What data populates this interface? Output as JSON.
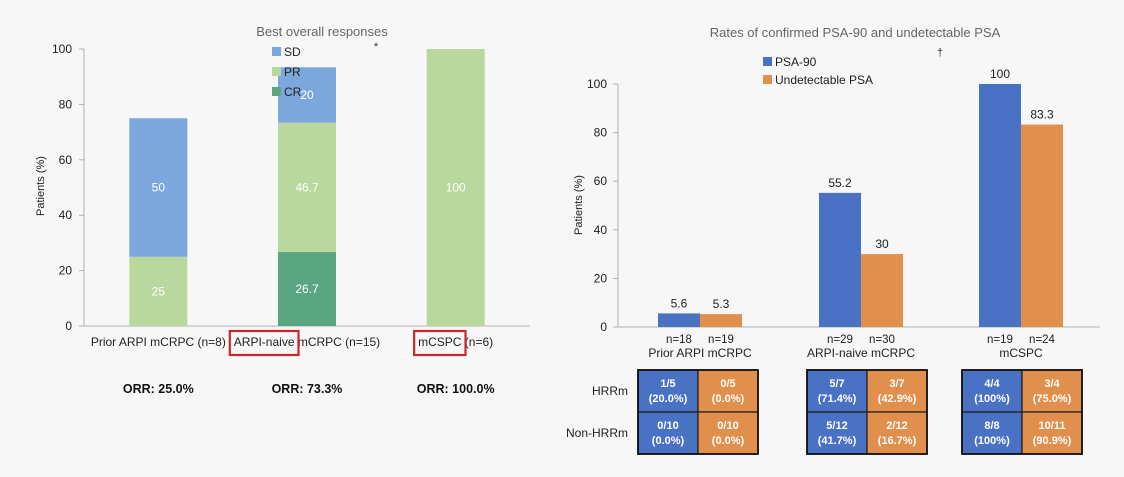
{
  "chart_data": [
    {
      "type": "bar",
      "stacked": true,
      "title": "Best overall responses",
      "ylabel": "Patients (%)",
      "xlabel": "",
      "ylim": [
        0,
        100
      ],
      "yticks": [
        0,
        20,
        40,
        60,
        80,
        100
      ],
      "categories": [
        "Prior ARPI mCRPC (n=8)",
        "ARPI-naive mCRPC (n=15)",
        "mCSPC (n=6)"
      ],
      "highlighted_words": [
        "ARPI-naive",
        "mCSPC"
      ],
      "series": [
        {
          "name": "CR",
          "color": "#5aa683",
          "values": [
            0,
            26.7,
            0
          ],
          "labels": [
            "",
            "26.7",
            ""
          ]
        },
        {
          "name": "PR",
          "color": "#b8d89e",
          "values": [
            25,
            46.7,
            100
          ],
          "labels": [
            "25",
            "46.7",
            "100"
          ]
        },
        {
          "name": "SD",
          "color": "#7ba7dc",
          "values": [
            50,
            20,
            0
          ],
          "labels": [
            "50",
            "20",
            ""
          ]
        }
      ],
      "legend": [
        "SD",
        "PR",
        "CR"
      ],
      "orr": [
        "ORR: 25.0%",
        "ORR: 73.3%",
        "ORR: 100.0%"
      ],
      "title_mark": "*"
    },
    {
      "type": "bar",
      "title": "Rates of confirmed PSA-90 and undetectable PSA",
      "ylabel": "Patients (%)",
      "xlabel": "",
      "ylim": [
        0,
        100
      ],
      "yticks": [
        0,
        20,
        40,
        60,
        80,
        100
      ],
      "categories": [
        "Prior ARPI mCRPC",
        "ARPI-naive mCRPC",
        "mCSPC"
      ],
      "series": [
        {
          "name": "PSA-90",
          "color": "#4a72c4",
          "values": [
            5.6,
            55.2,
            100
          ],
          "labels": [
            "5.6",
            "55.2",
            "100"
          ],
          "n": [
            "n=18",
            "n=29",
            "n=19"
          ]
        },
        {
          "name": "Undetectable PSA",
          "color": "#e08f4c",
          "values": [
            5.3,
            30,
            83.3
          ],
          "labels": [
            "5.3",
            "30",
            "83.3"
          ],
          "n": [
            "n=19",
            "n=30",
            "n=24"
          ]
        }
      ],
      "title_mark": "†",
      "subtable": {
        "rows": [
          "HRRm",
          "Non-HRRm"
        ],
        "cells": [
          [
            [
              "1/5",
              "(20.0%)"
            ],
            [
              "0/5",
              "(0.0%)"
            ],
            [
              "5/7",
              "(71.4%)"
            ],
            [
              "3/7",
              "(42.9%)"
            ],
            [
              "4/4",
              "(100%)"
            ],
            [
              "3/4",
              "(75.0%)"
            ]
          ],
          [
            [
              "0/10",
              "(0.0%)"
            ],
            [
              "0/10",
              "(0.0%)"
            ],
            [
              "5/12",
              "(41.7%)"
            ],
            [
              "2/12",
              "(16.7%)"
            ],
            [
              "8/8",
              "(100%)"
            ],
            [
              "10/11",
              "(90.9%)"
            ]
          ]
        ]
      }
    }
  ]
}
